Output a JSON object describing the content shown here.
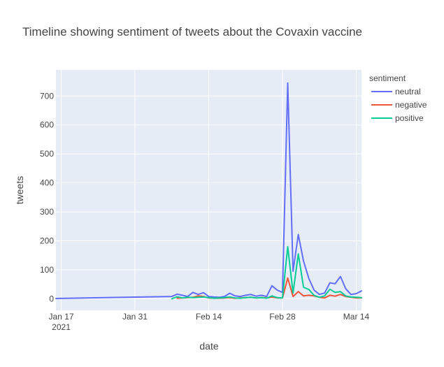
{
  "chart_data": {
    "type": "line",
    "title": "Timeline showing sentiment of tweets about the Covaxin vaccine",
    "xlabel": "date",
    "ylabel": "tweets",
    "legend_title": "sentiment",
    "legend_position": "right",
    "grid": true,
    "colors": {
      "plot_bg": "#E5ECF6",
      "gridline": "#FFFFFF"
    },
    "xlim": [
      "2021-01-16",
      "2021-03-15"
    ],
    "ylim": [
      -40,
      790
    ],
    "x_ticks": [
      {
        "date": "2021-01-17",
        "label": "Jan 17",
        "sublabel": "2021"
      },
      {
        "date": "2021-01-31",
        "label": "Jan 31"
      },
      {
        "date": "2021-02-14",
        "label": "Feb 14"
      },
      {
        "date": "2021-02-28",
        "label": "Feb 28"
      },
      {
        "date": "2021-03-14",
        "label": "Mar 14"
      }
    ],
    "y_ticks": [
      0,
      100,
      200,
      300,
      400,
      500,
      600,
      700
    ],
    "series": [
      {
        "name": "neutral",
        "color": "#636EFA",
        "points": [
          [
            "2021-01-16",
            1
          ],
          [
            "2021-02-07",
            8
          ],
          [
            "2021-02-08",
            16
          ],
          [
            "2021-02-09",
            12
          ],
          [
            "2021-02-10",
            8
          ],
          [
            "2021-02-11",
            22
          ],
          [
            "2021-02-12",
            15
          ],
          [
            "2021-02-13",
            21
          ],
          [
            "2021-02-14",
            8
          ],
          [
            "2021-02-15",
            6
          ],
          [
            "2021-02-16",
            5
          ],
          [
            "2021-02-17",
            8
          ],
          [
            "2021-02-18",
            19
          ],
          [
            "2021-02-19",
            10
          ],
          [
            "2021-02-20",
            8
          ],
          [
            "2021-02-21",
            12
          ],
          [
            "2021-02-22",
            15
          ],
          [
            "2021-02-23",
            9
          ],
          [
            "2021-02-24",
            12
          ],
          [
            "2021-02-25",
            8
          ],
          [
            "2021-02-26",
            45
          ],
          [
            "2021-02-27",
            30
          ],
          [
            "2021-02-28",
            22
          ],
          [
            "2021-03-01",
            745
          ],
          [
            "2021-03-02",
            95
          ],
          [
            "2021-03-03",
            222
          ],
          [
            "2021-03-04",
            130
          ],
          [
            "2021-03-05",
            70
          ],
          [
            "2021-03-06",
            30
          ],
          [
            "2021-03-07",
            15
          ],
          [
            "2021-03-08",
            20
          ],
          [
            "2021-03-09",
            55
          ],
          [
            "2021-03-10",
            52
          ],
          [
            "2021-03-11",
            77
          ],
          [
            "2021-03-12",
            35
          ],
          [
            "2021-03-13",
            15
          ],
          [
            "2021-03-14",
            18
          ],
          [
            "2021-03-15",
            27
          ]
        ]
      },
      {
        "name": "negative",
        "color": "#EF553B",
        "points": [
          [
            "2021-02-08",
            2
          ],
          [
            "2021-02-09",
            3
          ],
          [
            "2021-02-10",
            4
          ],
          [
            "2021-02-11",
            5
          ],
          [
            "2021-02-12",
            10
          ],
          [
            "2021-02-13",
            8
          ],
          [
            "2021-02-14",
            3
          ],
          [
            "2021-02-15",
            2
          ],
          [
            "2021-02-16",
            2
          ],
          [
            "2021-02-17",
            3
          ],
          [
            "2021-02-18",
            4
          ],
          [
            "2021-02-19",
            2
          ],
          [
            "2021-02-20",
            3
          ],
          [
            "2021-02-21",
            4
          ],
          [
            "2021-02-22",
            5
          ],
          [
            "2021-02-23",
            3
          ],
          [
            "2021-02-24",
            4
          ],
          [
            "2021-02-25",
            3
          ],
          [
            "2021-02-26",
            6
          ],
          [
            "2021-02-27",
            3
          ],
          [
            "2021-02-28",
            3
          ],
          [
            "2021-03-01",
            72
          ],
          [
            "2021-03-02",
            8
          ],
          [
            "2021-03-03",
            25
          ],
          [
            "2021-03-04",
            10
          ],
          [
            "2021-03-05",
            12
          ],
          [
            "2021-03-06",
            10
          ],
          [
            "2021-03-07",
            5
          ],
          [
            "2021-03-08",
            3
          ],
          [
            "2021-03-09",
            12
          ],
          [
            "2021-03-10",
            9
          ],
          [
            "2021-03-11",
            15
          ],
          [
            "2021-03-12",
            8
          ],
          [
            "2021-03-13",
            5
          ],
          [
            "2021-03-14",
            3
          ],
          [
            "2021-03-15",
            3
          ]
        ]
      },
      {
        "name": "positive",
        "color": "#00CC96",
        "points": [
          [
            "2021-02-07",
            0
          ],
          [
            "2021-02-08",
            7
          ],
          [
            "2021-02-09",
            3
          ],
          [
            "2021-02-10",
            5
          ],
          [
            "2021-02-11",
            4
          ],
          [
            "2021-02-12",
            5
          ],
          [
            "2021-02-13",
            6
          ],
          [
            "2021-02-14",
            4
          ],
          [
            "2021-02-15",
            2
          ],
          [
            "2021-02-16",
            3
          ],
          [
            "2021-02-17",
            4
          ],
          [
            "2021-02-18",
            6
          ],
          [
            "2021-02-19",
            3
          ],
          [
            "2021-02-20",
            2
          ],
          [
            "2021-02-21",
            4
          ],
          [
            "2021-02-22",
            5
          ],
          [
            "2021-02-23",
            3
          ],
          [
            "2021-02-24",
            4
          ],
          [
            "2021-02-25",
            2
          ],
          [
            "2021-02-26",
            10
          ],
          [
            "2021-02-27",
            4
          ],
          [
            "2021-02-28",
            3
          ],
          [
            "2021-03-01",
            180
          ],
          [
            "2021-03-02",
            20
          ],
          [
            "2021-03-03",
            155
          ],
          [
            "2021-03-04",
            40
          ],
          [
            "2021-03-05",
            32
          ],
          [
            "2021-03-06",
            12
          ],
          [
            "2021-03-07",
            5
          ],
          [
            "2021-03-08",
            10
          ],
          [
            "2021-03-09",
            33
          ],
          [
            "2021-03-10",
            22
          ],
          [
            "2021-03-11",
            25
          ],
          [
            "2021-03-12",
            10
          ],
          [
            "2021-03-13",
            6
          ],
          [
            "2021-03-14",
            5
          ],
          [
            "2021-03-15",
            4
          ]
        ]
      }
    ]
  }
}
